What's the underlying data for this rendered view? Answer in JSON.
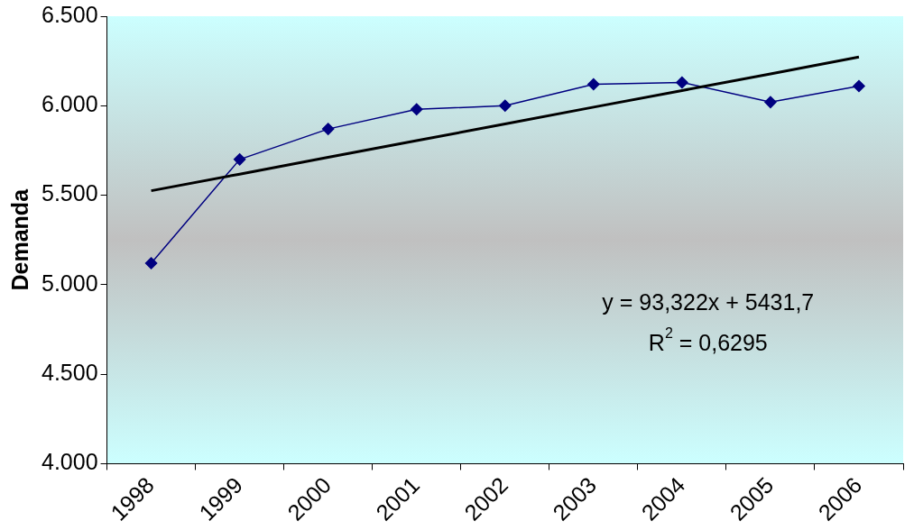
{
  "chart_data": {
    "type": "line",
    "ylabel": "Demanda",
    "categories": [
      "1998",
      "1999",
      "2000",
      "2001",
      "2002",
      "2003",
      "2004",
      "2005",
      "2006"
    ],
    "series": [
      {
        "color": "#000080",
        "marker": "diamond",
        "values": [
          5120,
          5700,
          5870,
          5980,
          6000,
          6120,
          6130,
          6020,
          6110
        ]
      },
      {
        "color": "#000000",
        "marker": "none",
        "values": [
          5525,
          5618,
          5712,
          5805,
          5898,
          5992,
          6085,
          6178,
          6272
        ]
      }
    ],
    "ylim": [
      4000,
      6500
    ],
    "yticks": [
      {
        "value": 4000,
        "label": "4.000"
      },
      {
        "value": 4500,
        "label": "4.500"
      },
      {
        "value": 5000,
        "label": "5.000"
      },
      {
        "value": 5500,
        "label": "5.500"
      },
      {
        "value": 6000,
        "label": "6.000"
      },
      {
        "value": 6500,
        "label": "6.500"
      }
    ],
    "grid": false,
    "legend": false,
    "annotations": [
      "y = 93,322x + 5431,7",
      "R$^{2}$ = 0,6295"
    ]
  }
}
